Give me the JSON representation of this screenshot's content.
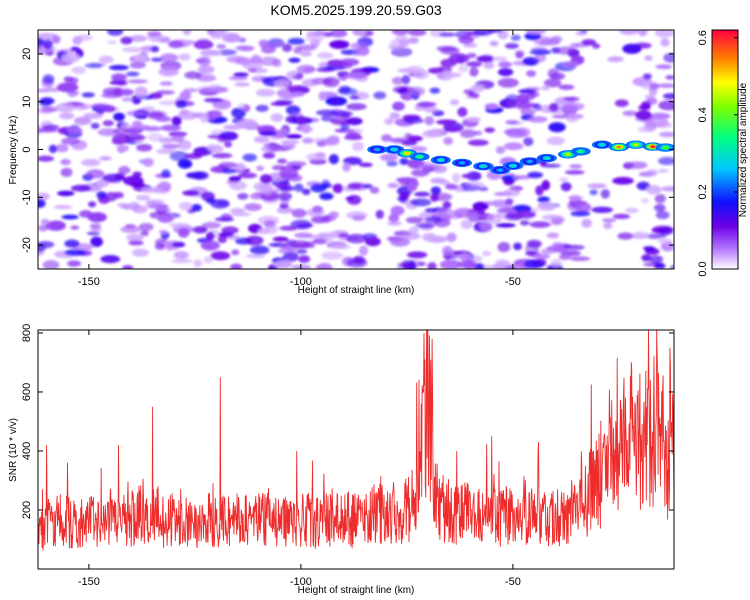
{
  "title": "KOM5.2025.199.20.59.G03",
  "chart_data": [
    {
      "type": "heatmap",
      "xlabel": "Height of straight line (km)",
      "ylabel": "Frequency (Hz)",
      "xlim": [
        -162,
        -12
      ],
      "ylim": [
        -25,
        25
      ],
      "xticks": [
        -150,
        -100,
        -50
      ],
      "yticks": [
        -20,
        -10,
        0,
        10,
        20
      ],
      "colorbar": {
        "label": "Normalized spectral amplitude",
        "range": [
          0,
          0.62
        ],
        "ticks": [
          "0.0",
          "0.2",
          "0.4",
          "0.6"
        ],
        "tick_values": [
          0,
          0.2,
          0.4,
          0.6
        ]
      },
      "signal_track": [
        {
          "x": -82,
          "y": 0.0,
          "amp": 0.25
        },
        {
          "x": -78,
          "y": 0.0,
          "amp": 0.3
        },
        {
          "x": -75,
          "y": -0.8,
          "amp": 0.5
        },
        {
          "x": -72,
          "y": -1.5,
          "amp": 0.35
        },
        {
          "x": -67,
          "y": -2.2,
          "amp": 0.3
        },
        {
          "x": -62,
          "y": -2.8,
          "amp": 0.25
        },
        {
          "x": -57,
          "y": -3.5,
          "amp": 0.3
        },
        {
          "x": -53,
          "y": -4.3,
          "amp": 0.25
        },
        {
          "x": -50,
          "y": -3.4,
          "amp": 0.3
        },
        {
          "x": -46,
          "y": -2.5,
          "amp": 0.25
        },
        {
          "x": -42,
          "y": -1.8,
          "amp": 0.3
        },
        {
          "x": -37,
          "y": -1.0,
          "amp": 0.45
        },
        {
          "x": -34,
          "y": -0.4,
          "amp": 0.35
        },
        {
          "x": -29,
          "y": 1.0,
          "amp": 0.3
        },
        {
          "x": -25,
          "y": 0.5,
          "amp": 0.55
        },
        {
          "x": -21,
          "y": 1.0,
          "amp": 0.45
        },
        {
          "x": -17,
          "y": 0.6,
          "amp": 0.6
        },
        {
          "x": -14,
          "y": 0.4,
          "amp": 0.4
        }
      ]
    },
    {
      "type": "line",
      "xlabel": "Height of straight line (km)",
      "ylabel": "SNR (10 * v/v)",
      "xlim": [
        -162,
        -12
      ],
      "ylim": [
        0,
        810
      ],
      "xticks": [
        -150,
        -100,
        -50
      ],
      "yticks": [
        200,
        400,
        600,
        800
      ],
      "color": "#ee2c2c",
      "series": [
        {
          "x": [
            -162,
            -159,
            -156,
            -153,
            -150,
            -147,
            -144,
            -141,
            -138,
            -135,
            -132,
            -129,
            -126,
            -123,
            -120,
            -117,
            -114,
            -111,
            -108,
            -105,
            -102,
            -99,
            -96,
            -93,
            -90,
            -87,
            -84,
            -81,
            -78,
            -75,
            -72,
            -71,
            -70,
            -69,
            -68,
            -66,
            -63,
            -60,
            -57,
            -54,
            -51,
            -48,
            -45,
            -42,
            -39,
            -36,
            -33,
            -30,
            -27,
            -24,
            -21,
            -18,
            -16,
            -15,
            -14,
            -13,
            -12
          ],
          "values": [
            130,
            150,
            170,
            145,
            160,
            175,
            150,
            165,
            180,
            195,
            160,
            170,
            165,
            155,
            175,
            165,
            170,
            160,
            175,
            150,
            170,
            165,
            160,
            175,
            170,
            165,
            180,
            185,
            190,
            200,
            280,
            480,
            640,
            380,
            230,
            200,
            190,
            185,
            180,
            175,
            180,
            170,
            175,
            165,
            180,
            200,
            240,
            300,
            380,
            420,
            380,
            460,
            520,
            440,
            380,
            300,
            460
          ]
        }
      ],
      "noise_spikes": [
        {
          "x": -160,
          "y": 420
        },
        {
          "x": -155,
          "y": 360
        },
        {
          "x": -143,
          "y": 420
        },
        {
          "x": -135,
          "y": 550
        },
        {
          "x": -119,
          "y": 650
        },
        {
          "x": -101,
          "y": 400
        },
        {
          "x": -71,
          "y": 800
        },
        {
          "x": -69,
          "y": 780
        },
        {
          "x": -55,
          "y": 450
        },
        {
          "x": -44,
          "y": 430
        },
        {
          "x": -28,
          "y": 420
        },
        {
          "x": -22,
          "y": 680
        },
        {
          "x": -18,
          "y": 810
        },
        {
          "x": -13,
          "y": 750
        }
      ]
    }
  ]
}
